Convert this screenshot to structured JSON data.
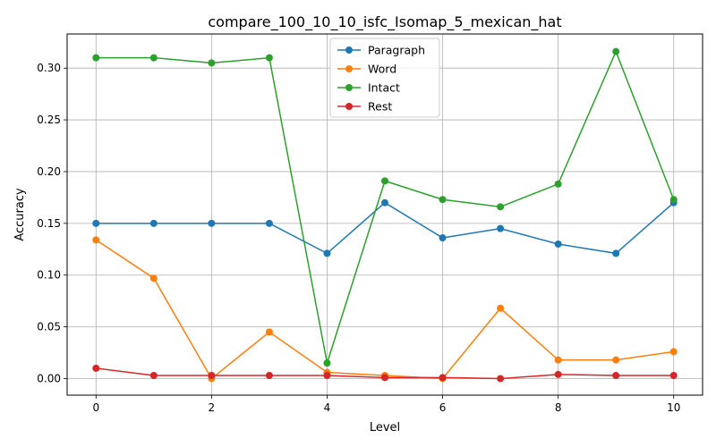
{
  "chart_data": {
    "type": "line",
    "title": "compare_100_10_10_isfc_Isomap_5_mexican_hat",
    "xlabel": "Level",
    "ylabel": "Accuracy",
    "xlim": [
      -0.5,
      10.5
    ],
    "ylim": [
      -0.016,
      0.333
    ],
    "xticks": [
      0,
      2,
      4,
      6,
      8,
      10
    ],
    "yticks": [
      0.0,
      0.05,
      0.1,
      0.15,
      0.2,
      0.25,
      0.3
    ],
    "ytick_labels": [
      "0.00",
      "0.05",
      "0.10",
      "0.15",
      "0.20",
      "0.25",
      "0.30"
    ],
    "grid": true,
    "legend": "top-center",
    "x": [
      0,
      1,
      2,
      3,
      4,
      5,
      6,
      7,
      8,
      9,
      10
    ],
    "series": [
      {
        "name": "Paragraph",
        "color": "#1f77b4",
        "values": [
          0.15,
          0.15,
          0.15,
          0.15,
          0.121,
          0.17,
          0.136,
          0.145,
          0.13,
          0.121,
          0.17
        ]
      },
      {
        "name": "Word",
        "color": "#ff7f0e",
        "values": [
          0.134,
          0.097,
          0.0,
          0.045,
          0.006,
          0.003,
          0.0,
          0.068,
          0.018,
          0.018,
          0.026
        ]
      },
      {
        "name": "Intact",
        "color": "#2ca02c",
        "values": [
          0.31,
          0.31,
          0.305,
          0.31,
          0.015,
          0.191,
          0.173,
          0.166,
          0.188,
          0.316,
          0.173
        ]
      },
      {
        "name": "Rest",
        "color": "#d62728",
        "values": [
          0.01,
          0.003,
          0.003,
          0.003,
          0.003,
          0.001,
          0.001,
          0.0,
          0.004,
          0.003,
          0.003
        ]
      }
    ]
  }
}
